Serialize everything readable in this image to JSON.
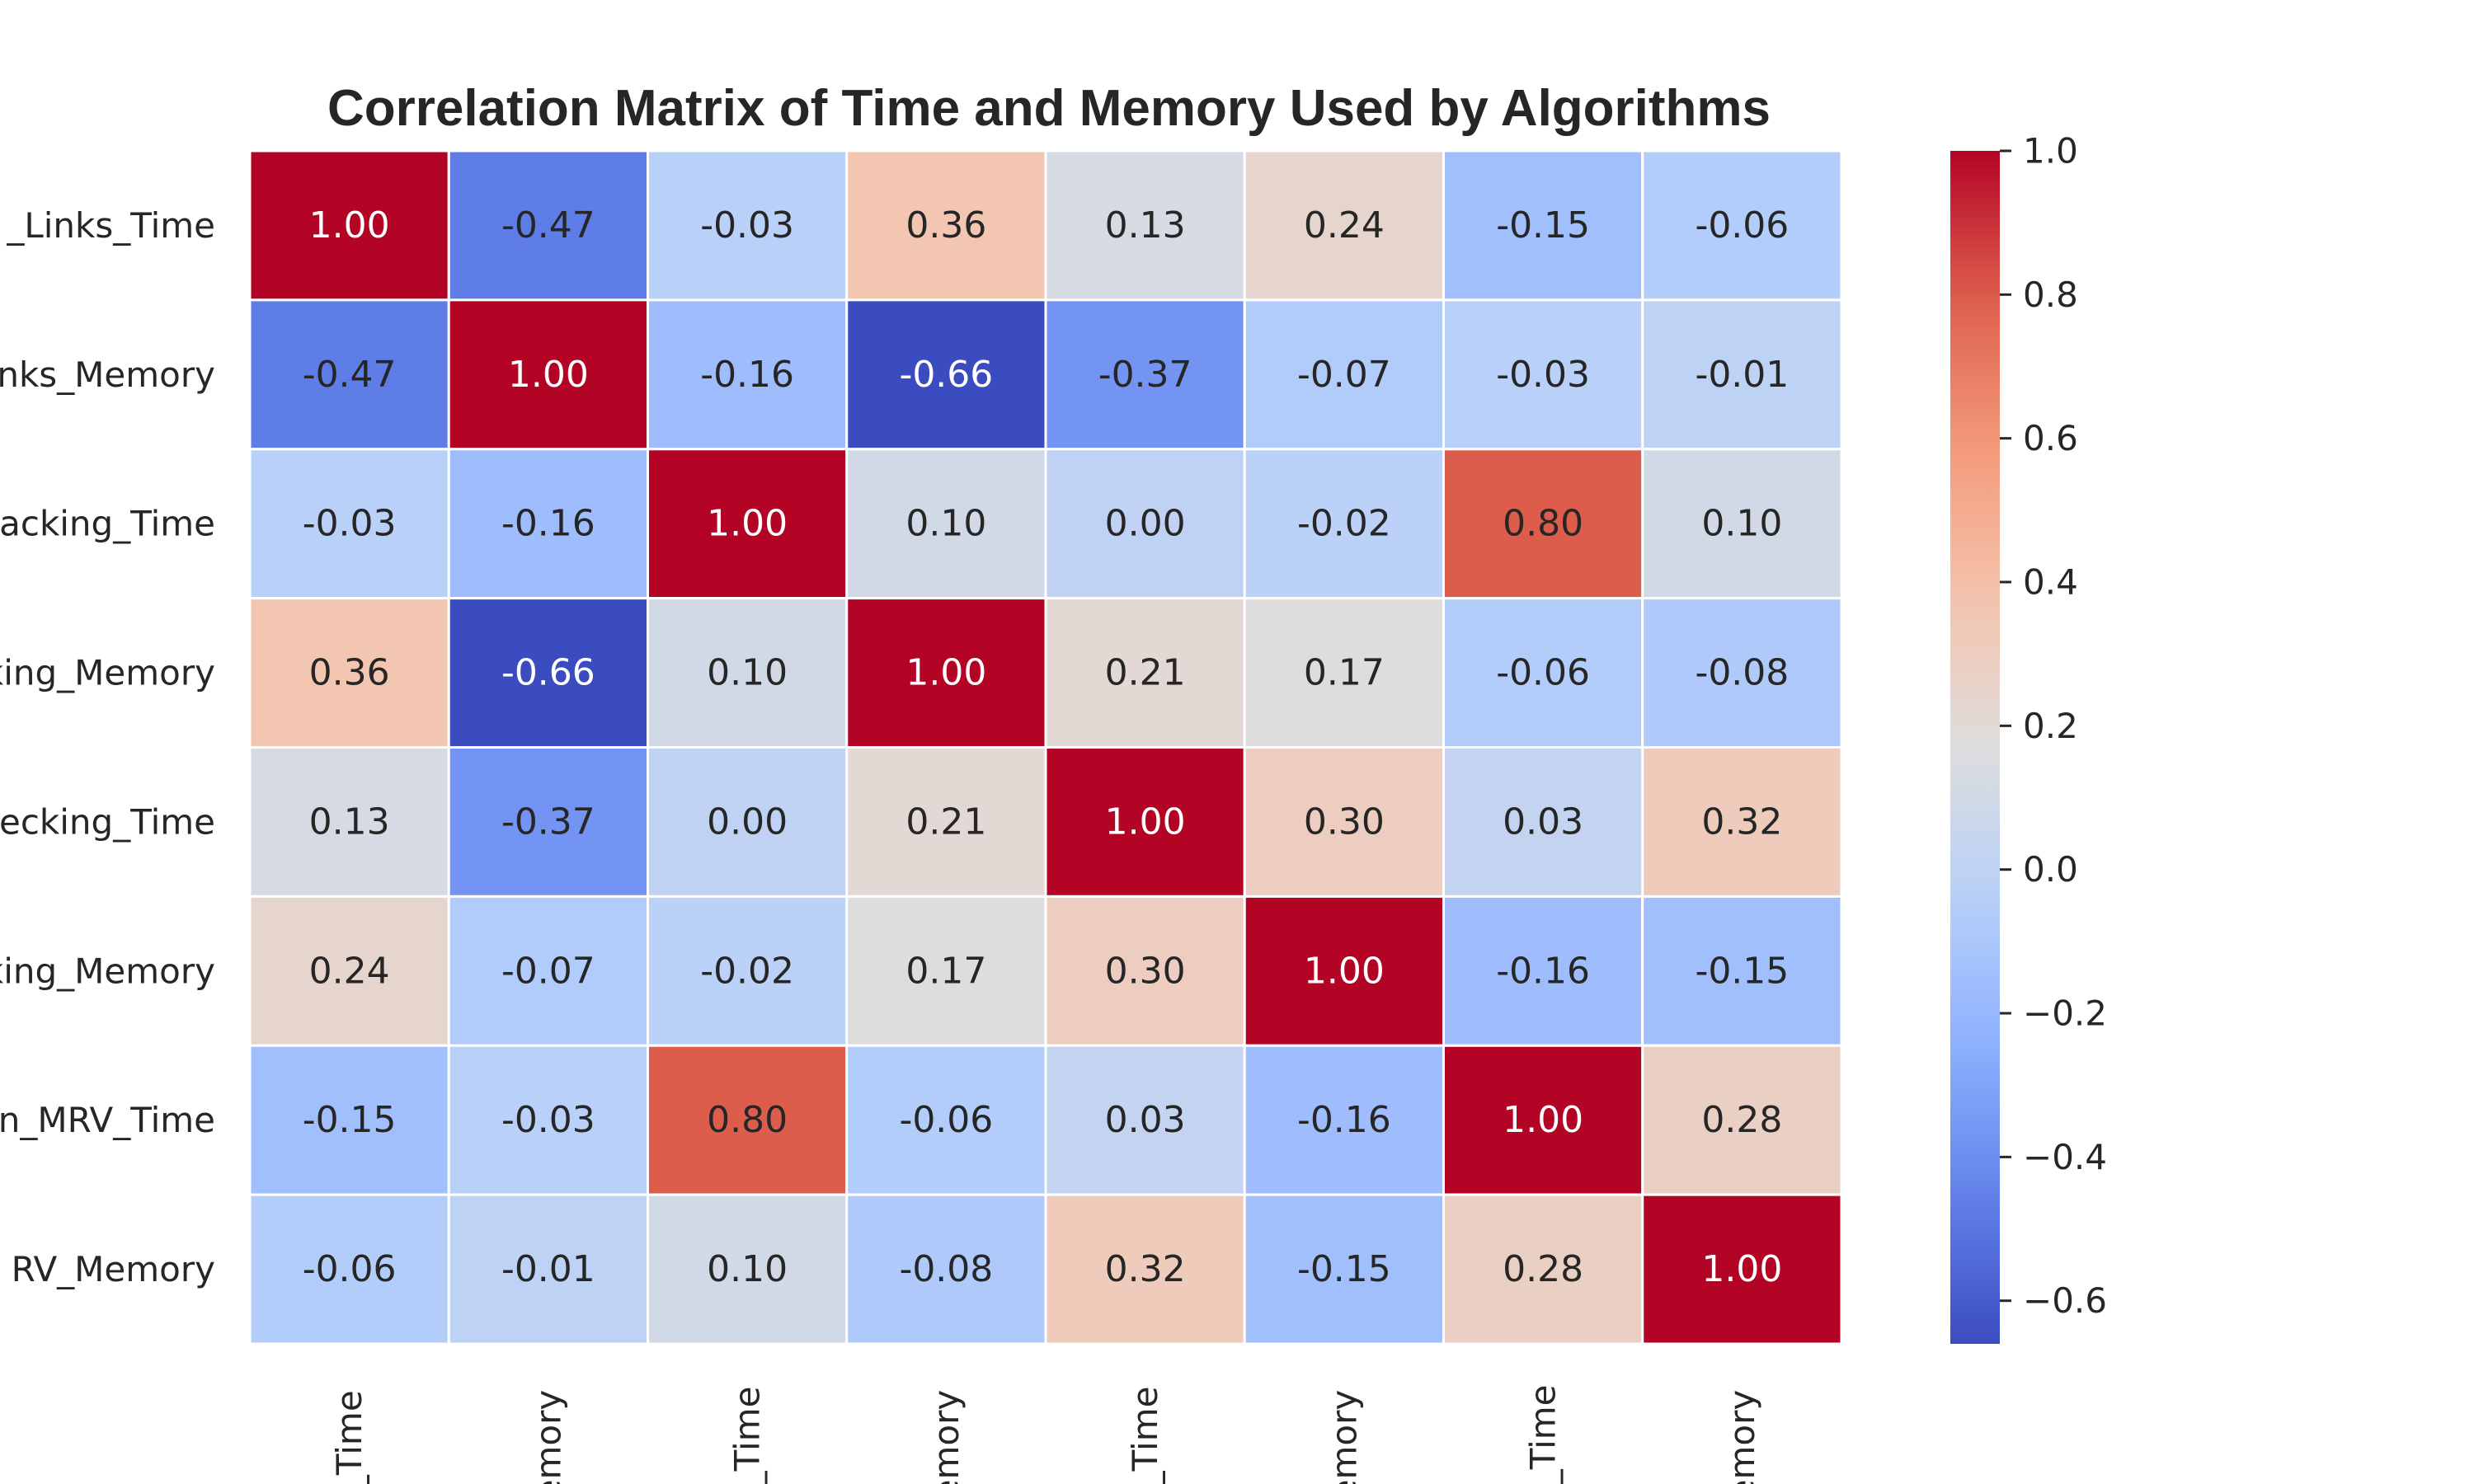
{
  "chart_data": {
    "type": "heatmap",
    "title": "Correlation Matrix of Time and Memory Used by Algorithms",
    "row_labels": [
      "_Links_Time",
      "nks_Memory",
      "racking_Time",
      "king_Memory",
      "ecking_Time",
      "king_Memory",
      "n_MRV_Time",
      "RV_Memory"
    ],
    "col_labels": [
      "s_Time",
      "lemory",
      "g_Time",
      "lemory",
      "g_Time",
      "lemory",
      "V_Time",
      "lemory"
    ],
    "values": [
      [
        1.0,
        -0.47,
        -0.03,
        0.36,
        0.13,
        0.24,
        -0.15,
        -0.06
      ],
      [
        -0.47,
        1.0,
        -0.16,
        -0.66,
        -0.37,
        -0.07,
        -0.03,
        -0.01
      ],
      [
        -0.03,
        -0.16,
        1.0,
        0.1,
        0.0,
        -0.02,
        0.8,
        0.1
      ],
      [
        0.36,
        -0.66,
        0.1,
        1.0,
        0.21,
        0.17,
        -0.06,
        -0.08
      ],
      [
        0.13,
        -0.37,
        0.0,
        0.21,
        1.0,
        0.3,
        0.03,
        0.32
      ],
      [
        0.24,
        -0.07,
        -0.02,
        0.17,
        0.3,
        1.0,
        -0.16,
        -0.15
      ],
      [
        -0.15,
        -0.03,
        0.8,
        -0.06,
        0.03,
        -0.16,
        1.0,
        0.28
      ],
      [
        -0.06,
        -0.01,
        0.1,
        -0.08,
        0.32,
        -0.15,
        0.28,
        1.0
      ]
    ],
    "value_format": "2 decimals",
    "colormap": "coolwarm",
    "vmin": -0.66,
    "vmax": 1.0,
    "colorbar_ticks": [
      {
        "value": 1.0,
        "label": "1.0"
      },
      {
        "value": 0.8,
        "label": "0.8"
      },
      {
        "value": 0.6,
        "label": "0.6"
      },
      {
        "value": 0.4,
        "label": "0.4"
      },
      {
        "value": 0.2,
        "label": "0.2"
      },
      {
        "value": 0.0,
        "label": "0.0"
      },
      {
        "value": -0.2,
        "label": "−0.2"
      },
      {
        "value": -0.4,
        "label": "−0.4"
      },
      {
        "value": -0.6,
        "label": "−0.6"
      }
    ],
    "grid_line_color": "#ffffff",
    "text_color_dark": "#262626",
    "text_color_light": "#ffffff"
  }
}
